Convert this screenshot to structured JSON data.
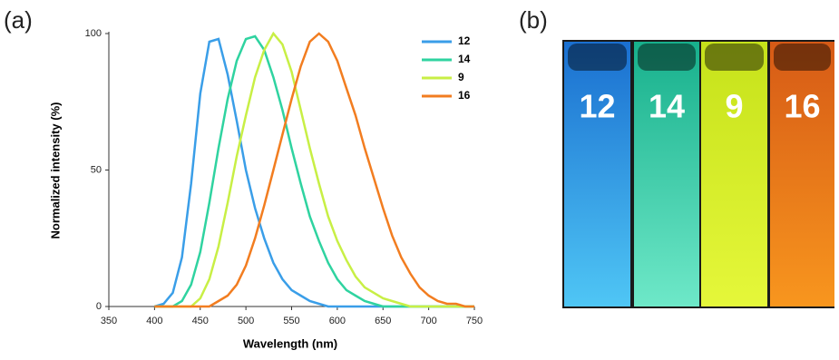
{
  "panel_labels": [
    "(a)",
    "(b)"
  ],
  "chart_data": {
    "type": "line",
    "x_label": "Wavelength (nm)",
    "y_label": "Normalized intensity (%)",
    "x": [
      400,
      410,
      420,
      430,
      440,
      450,
      460,
      470,
      480,
      490,
      500,
      510,
      520,
      530,
      540,
      550,
      560,
      570,
      580,
      590,
      600,
      610,
      620,
      630,
      640,
      650,
      660,
      670,
      680,
      690,
      700,
      710,
      720,
      730,
      740,
      750
    ],
    "series": [
      {
        "name": "12",
        "color": "#3a9ee8",
        "values": [
          0,
          1,
          5,
          18,
          45,
          78,
          97,
          98,
          85,
          68,
          50,
          36,
          25,
          16,
          10,
          6,
          4,
          2,
          1,
          0,
          0,
          0,
          0,
          0,
          0,
          0,
          0,
          0,
          0,
          0,
          0,
          0,
          0,
          0,
          0,
          0
        ]
      },
      {
        "name": "14",
        "color": "#2fd3a0",
        "values": [
          0,
          0,
          0,
          2,
          8,
          20,
          38,
          58,
          76,
          90,
          98,
          99,
          94,
          84,
          72,
          58,
          45,
          33,
          24,
          16,
          10,
          6,
          4,
          2,
          1,
          0,
          0,
          0,
          0,
          0,
          0,
          0,
          0,
          0,
          0,
          0
        ]
      },
      {
        "name": "9",
        "color": "#c8ef45",
        "values": [
          0,
          0,
          0,
          0,
          0,
          3,
          10,
          22,
          38,
          55,
          70,
          84,
          94,
          100,
          96,
          86,
          72,
          58,
          45,
          33,
          24,
          17,
          11,
          7,
          5,
          3,
          2,
          1,
          0,
          0,
          0,
          0,
          0,
          0,
          0,
          0
        ]
      },
      {
        "name": "16",
        "color": "#f27d20",
        "values": [
          0,
          0,
          0,
          0,
          0,
          0,
          0,
          2,
          4,
          8,
          15,
          25,
          37,
          50,
          63,
          76,
          88,
          97,
          100,
          97,
          90,
          80,
          70,
          58,
          47,
          36,
          26,
          18,
          12,
          7,
          4,
          2,
          1,
          1,
          0,
          0
        ]
      }
    ],
    "xlim": [
      350,
      750
    ],
    "xticks": [
      350,
      400,
      450,
      500,
      550,
      600,
      650,
      700,
      750
    ],
    "ylim": [
      0,
      100
    ],
    "yticks": [
      0,
      50,
      100
    ],
    "legend": "upper right"
  },
  "photo": {
    "labels": [
      "12",
      "14",
      "9",
      "16"
    ]
  }
}
